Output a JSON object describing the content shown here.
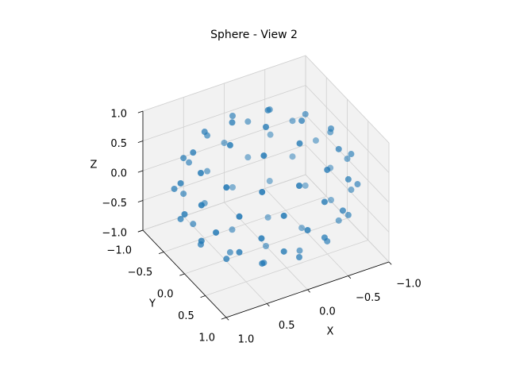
{
  "chart_data": {
    "type": "scatter3d",
    "title": "Sphere - View 2",
    "xlabel": "X",
    "ylabel": "Y",
    "zlabel": "Z",
    "color": "#1f77b4",
    "x": [
      1,
      0.87,
      0.5,
      0,
      -0.5,
      -0.87,
      -1,
      -0.87,
      -0.5,
      0,
      0.5,
      0.87,
      0.92,
      0.67,
      0.25,
      -0.25,
      -0.67,
      -0.92,
      -0.92,
      -0.67,
      -0.25,
      0.25,
      0.67,
      0.92,
      0.92,
      0.67,
      0.25,
      -0.25,
      -0.67,
      -0.92,
      -0.92,
      -0.67,
      -0.25,
      0.25,
      0.67,
      0.92,
      0.8,
      0.69,
      0.4,
      0,
      -0.4,
      -0.69,
      -0.8,
      -0.69,
      -0.4,
      0,
      0.4,
      0.69,
      0.8,
      0.69,
      0.4,
      0,
      -0.4,
      -0.69,
      -0.8,
      -0.69,
      -0.4,
      0,
      0.4,
      0.69,
      0.44,
      0.22,
      -0.22,
      -0.44,
      -0.22,
      0.22,
      0.44,
      0.22,
      -0.22,
      -0.44,
      -0.22,
      0.22,
      0,
      0
    ],
    "y": [
      0,
      0.5,
      0.87,
      1,
      0.87,
      0.5,
      0,
      -0.5,
      -0.87,
      -1,
      -0.87,
      -0.5,
      0.25,
      0.67,
      0.92,
      0.92,
      0.67,
      0.25,
      -0.25,
      -0.67,
      -0.92,
      -0.92,
      -0.67,
      -0.25,
      0.25,
      0.67,
      0.92,
      0.92,
      0.67,
      0.25,
      -0.25,
      -0.67,
      -0.92,
      -0.92,
      -0.67,
      -0.25,
      0,
      0.4,
      0.69,
      0.8,
      0.69,
      0.4,
      0,
      -0.4,
      -0.69,
      -0.8,
      -0.69,
      -0.4,
      0,
      0.4,
      0.69,
      0.8,
      0.69,
      0.4,
      0,
      -0.4,
      -0.69,
      -0.8,
      -0.69,
      -0.4,
      0,
      0.38,
      0.38,
      0,
      -0.38,
      -0.38,
      0,
      0.38,
      0.38,
      0,
      -0.38,
      -0.38,
      0,
      0
    ],
    "z": [
      0,
      0,
      0,
      0,
      0,
      0,
      0,
      0,
      0,
      0,
      0,
      0,
      0.3,
      0.3,
      0.3,
      0.3,
      0.3,
      0.3,
      0.3,
      0.3,
      0.3,
      0.3,
      0.3,
      0.3,
      -0.3,
      -0.3,
      -0.3,
      -0.3,
      -0.3,
      -0.3,
      -0.3,
      -0.3,
      -0.3,
      -0.3,
      -0.3,
      -0.3,
      0.6,
      0.6,
      0.6,
      0.6,
      0.6,
      0.6,
      0.6,
      0.6,
      0.6,
      0.6,
      0.6,
      0.6,
      -0.6,
      -0.6,
      -0.6,
      -0.6,
      -0.6,
      -0.6,
      -0.6,
      -0.6,
      -0.6,
      -0.6,
      -0.6,
      -0.6,
      0.9,
      0.9,
      0.9,
      0.9,
      0.9,
      0.9,
      -0.9,
      -0.9,
      -0.9,
      -0.9,
      -0.9,
      -0.9,
      1,
      -1
    ],
    "xlim": [
      -1,
      1
    ],
    "ylim": [
      -1,
      1
    ],
    "zlim": [
      -1,
      1
    ],
    "xticks": [
      {
        "value": -1,
        "label": "−1.0"
      },
      {
        "value": -0.5,
        "label": "−0.5"
      },
      {
        "value": 0,
        "label": "0.0"
      },
      {
        "value": 0.5,
        "label": "0.5"
      },
      {
        "value": 1,
        "label": "1.0"
      }
    ],
    "yticks": [
      {
        "value": -1,
        "label": "−1.0"
      },
      {
        "value": -0.5,
        "label": "−0.5"
      },
      {
        "value": 0,
        "label": "0.0"
      },
      {
        "value": 0.5,
        "label": "0.5"
      },
      {
        "value": 1,
        "label": "1.0"
      }
    ],
    "zticks": [
      {
        "value": -1,
        "label": "−1.0"
      },
      {
        "value": -0.5,
        "label": "−0.5"
      },
      {
        "value": 0,
        "label": "0.0"
      },
      {
        "value": 0.5,
        "label": "0.5"
      },
      {
        "value": 1,
        "label": "1.0"
      }
    ],
    "grid": true
  }
}
